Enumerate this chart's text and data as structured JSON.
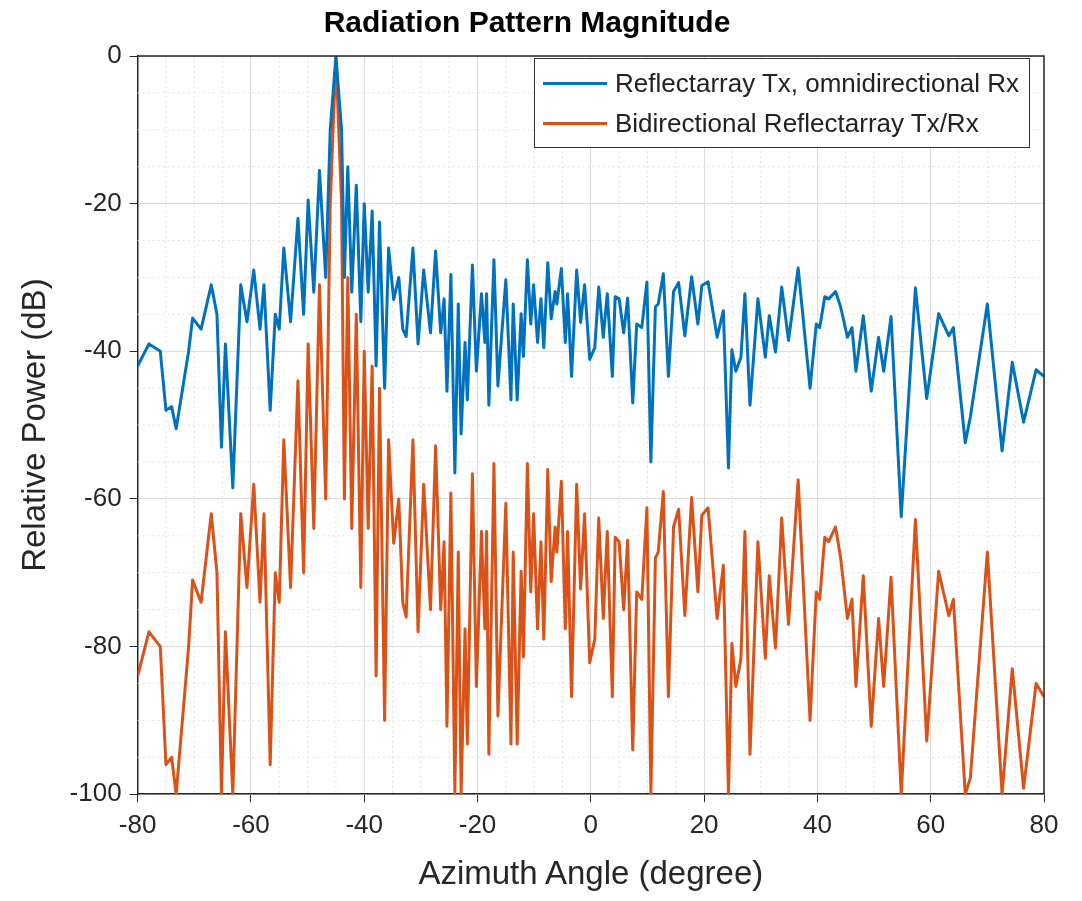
{
  "chart_data": {
    "type": "line",
    "title": "Radiation Pattern Magnitude",
    "xlabel": "Azimuth Angle (degree)",
    "ylabel": "Relative Power (dB)",
    "xlim": [
      -80,
      80
    ],
    "xticks": [
      -80,
      -60,
      -40,
      -20,
      0,
      20,
      40,
      60,
      80
    ],
    "ylim": [
      -100,
      0
    ],
    "yticks": [
      -100,
      -80,
      -60,
      -40,
      -20,
      0
    ],
    "grid": true,
    "legend": "top right",
    "marker": "none",
    "line_style": "solid",
    "x": [
      -80,
      -78,
      -76,
      -75,
      -74,
      -73.2,
      -71,
      -70.3,
      -68.8,
      -67,
      -66,
      -65.2,
      -64.5,
      -63.2,
      -61.8,
      -60.7,
      -59.5,
      -58.4,
      -57.7,
      -56.6,
      -55.7,
      -55,
      -54.2,
      -53,
      -51.7,
      -50.7,
      -49.9,
      -48.9,
      -47.9,
      -46.8,
      -46,
      -45,
      -44,
      -43.5,
      -42.9,
      -42.2,
      -41.4,
      -40.6,
      -40,
      -39.3,
      -38.6,
      -37.9,
      -37.3,
      -36.4,
      -35.7,
      -34.8,
      -33.9,
      -33.2,
      -32.6,
      -31.4,
      -30.5,
      -29.5,
      -28.3,
      -27.4,
      -26.5,
      -25.9,
      -25.4,
      -24.7,
      -24,
      -23.4,
      -22.9,
      -22.2,
      -21.8,
      -20.9,
      -20.2,
      -19.3,
      -18.7,
      -18.4,
      -18,
      -17.1,
      -16.4,
      -15.9,
      -15,
      -14.1,
      -13.7,
      -13,
      -12.3,
      -11.9,
      -11.2,
      -10.6,
      -10.1,
      -9.4,
      -8.8,
      -8.3,
      -7.6,
      -7,
      -6.3,
      -6,
      -5.2,
      -4.5,
      -4.1,
      -3.4,
      -2.5,
      -1.8,
      -1.1,
      -0.2,
      0.7,
      1.4,
      2.2,
      2.9,
      3.8,
      4.3,
      5,
      5.8,
      6.5,
      7.4,
      8.1,
      9,
      9.9,
      10.6,
      11.4,
      11.9,
      12.8,
      13.7,
      14.6,
      15.5,
      16.6,
      17.8,
      18.9,
      19.6,
      20.7,
      22.3,
      23.4,
      24.3,
      24.9,
      25.6,
      26.5,
      27.2,
      28.1,
      29.5,
      30.8,
      31.5,
      32.6,
      33.7,
      34.9,
      36.6,
      38.7,
      39.8,
      40.4,
      41.3,
      42,
      43.2,
      44.1,
      45.3,
      46.1,
      46.8,
      48.1,
      49.5,
      50.8,
      51.7,
      53,
      54.8,
      57.3,
      59.3,
      61.4,
      63.2,
      64,
      66.1,
      67,
      70,
      72.6,
      74.4,
      76.4,
      78.6,
      80
    ],
    "series": [
      {
        "name": "Reflectarray Tx, omnidirectional Rx",
        "color": "#0072bd",
        "values": [
          -42,
          -39,
          -40,
          -48,
          -47.5,
          -50.5,
          -40,
          -35.5,
          -37,
          -31,
          -35,
          -53,
          -39,
          -58.5,
          -31,
          -36,
          -29,
          -37,
          -31,
          -48,
          -35,
          -37,
          -26,
          -36,
          -22,
          -35,
          -19.5,
          -32,
          -15.5,
          -30,
          -10,
          0,
          -10,
          -30,
          -15,
          -32,
          -17.5,
          -36,
          -20,
          -32,
          -21,
          -42,
          -22.5,
          -45,
          -26,
          -33,
          -30,
          -37,
          -38,
          -26,
          -39,
          -29,
          -37.5,
          -26.4,
          -37.5,
          -32.9,
          -45.4,
          -29.6,
          -56.5,
          -33.6,
          -51.2,
          -38.8,
          -46.6,
          -28.3,
          -42.7,
          -32.2,
          -38.8,
          -32.2,
          -47.3,
          -27.6,
          -44.7,
          -39.5,
          -30.3,
          -46.6,
          -33.6,
          -46.6,
          -34.9,
          -40.7,
          -27.6,
          -36.3,
          -31,
          -38.8,
          -32.9,
          -39.5,
          -28,
          -35.6,
          -31.9,
          -33.6,
          -28.8,
          -38.8,
          -32.2,
          -43.4,
          -29,
          -36.1,
          -31,
          -41.1,
          -39.5,
          -31.3,
          -38.1,
          -32.2,
          -43.4,
          -32.6,
          -32.9,
          -37.5,
          -32.8,
          -47,
          -36.3,
          -36.8,
          -30.6,
          -55,
          -34,
          -33.6,
          -29.5,
          -43.4,
          -31.9,
          -30.7,
          -37.9,
          -29.9,
          -36.3,
          -31.1,
          -30.6,
          -38.1,
          -34.5,
          -55.8,
          -39.8,
          -42.7,
          -40.8,
          -32.2,
          -47.3,
          -32.9,
          -40.8,
          -35.2,
          -40.1,
          -31.3,
          -38.5,
          -28.7,
          -45,
          -36.3,
          -36.8,
          -32.6,
          -32.9,
          -31.9,
          -34,
          -38.1,
          -36.8,
          -42.7,
          -35.2,
          -45.4,
          -38.1,
          -42.7,
          -35.3,
          -62.4,
          -31.4,
          -46.4,
          -34.9,
          -37.9,
          -36.8,
          -52.4,
          -48.9,
          -33.6,
          -53.5,
          -41.5,
          -49.6,
          -42.5,
          -43.4
        ]
      },
      {
        "name": "Bidirectional Reflectarray Tx/Rx",
        "color": "#d95319",
        "values": [
          -84,
          -78,
          -80,
          -96,
          -95,
          -100,
          -80,
          -71,
          -74,
          -62,
          -70,
          -100,
          -78,
          -100,
          -62,
          -72,
          -58,
          -74,
          -62,
          -96,
          -70,
          -74,
          -52,
          -72,
          -44,
          -70,
          -39,
          -64,
          -31,
          -60,
          -20,
          0,
          -20,
          -60,
          -30,
          -64,
          -35,
          -72,
          -40,
          -64,
          -42,
          -84,
          -45,
          -90,
          -52,
          -66,
          -60,
          -74,
          -76,
          -52,
          -78,
          -58,
          -75,
          -52.8,
          -75,
          -65.8,
          -90.8,
          -59.2,
          -100,
          -67.2,
          -100,
          -77.6,
          -93.2,
          -56.6,
          -85.4,
          -64.4,
          -77.6,
          -64.4,
          -94.6,
          -55.2,
          -89.4,
          -79,
          -60.6,
          -93.2,
          -67.2,
          -93.2,
          -69.8,
          -81.4,
          -55.2,
          -72.6,
          -62,
          -77.6,
          -65.8,
          -79,
          -56,
          -71.2,
          -63.8,
          -67.2,
          -57.6,
          -77.6,
          -64.4,
          -86.8,
          -58,
          -72.2,
          -62,
          -82.2,
          -79,
          -62.6,
          -76.2,
          -64.4,
          -86.8,
          -65.2,
          -65.8,
          -75,
          -65.6,
          -94,
          -72.6,
          -73.6,
          -61.2,
          -100,
          -68,
          -67.2,
          -59,
          -86.8,
          -63.8,
          -61.4,
          -75.8,
          -59.8,
          -72.6,
          -62.2,
          -61.2,
          -76.2,
          -69,
          -100,
          -79.6,
          -85.4,
          -81.6,
          -64.4,
          -94.6,
          -65.8,
          -81.6,
          -70.4,
          -80.2,
          -62.6,
          -77,
          -57.4,
          -90,
          -72.6,
          -73.6,
          -65.2,
          -65.8,
          -63.8,
          -68,
          -76.2,
          -73.6,
          -85.4,
          -70.4,
          -90.8,
          -76.2,
          -85.4,
          -70.6,
          -100,
          -62.8,
          -92.8,
          -69.8,
          -75.8,
          -73.6,
          -100,
          -97.8,
          -67.2,
          -100,
          -83,
          -99.2,
          -85,
          -86.8
        ]
      }
    ]
  }
}
